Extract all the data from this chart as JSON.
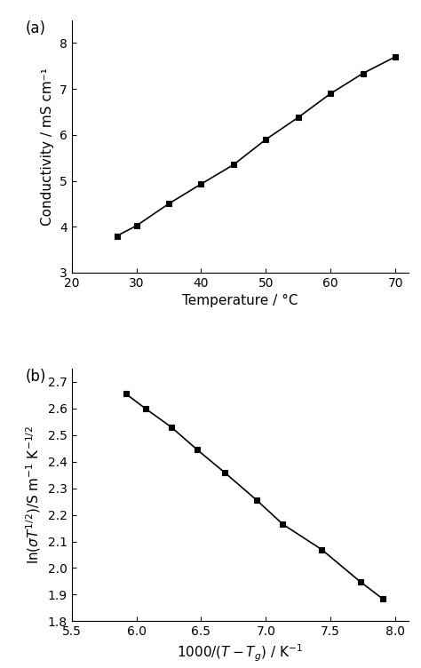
{
  "panel_a": {
    "x": [
      27,
      30,
      35,
      40,
      45,
      50,
      55,
      60,
      65,
      70
    ],
    "y": [
      3.8,
      4.02,
      4.5,
      4.93,
      5.35,
      5.9,
      6.38,
      6.9,
      7.34,
      7.7
    ],
    "xlabel": "Temperature / °C",
    "ylabel": "Conductivity / mS cm⁻¹",
    "xlim": [
      20,
      72
    ],
    "ylim": [
      3.0,
      8.5
    ],
    "xticks": [
      20,
      30,
      40,
      50,
      60,
      70
    ],
    "yticks": [
      3,
      4,
      5,
      6,
      7,
      8
    ],
    "label": "(a)"
  },
  "panel_b": {
    "x": [
      5.92,
      6.07,
      6.27,
      6.47,
      6.68,
      6.93,
      7.13,
      7.43,
      7.73,
      7.9
    ],
    "y": [
      2.655,
      2.6,
      2.53,
      2.445,
      2.36,
      2.255,
      2.165,
      2.07,
      1.948,
      1.885
    ],
    "xlim": [
      5.5,
      8.1
    ],
    "ylim": [
      1.8,
      2.75
    ],
    "xticks": [
      5.5,
      6.0,
      6.5,
      7.0,
      7.5,
      8.0
    ],
    "yticks": [
      1.8,
      1.9,
      2.0,
      2.1,
      2.2,
      2.3,
      2.4,
      2.5,
      2.6,
      2.7
    ],
    "label": "(b)"
  },
  "line_color": "#000000",
  "marker": "s",
  "marker_size": 5,
  "marker_facecolor": "#000000",
  "marker_edgecolor": "#000000",
  "linewidth": 1.2,
  "background_color": "#ffffff",
  "tick_labelsize": 10,
  "axis_labelsize": 11,
  "panel_labelsize": 12
}
